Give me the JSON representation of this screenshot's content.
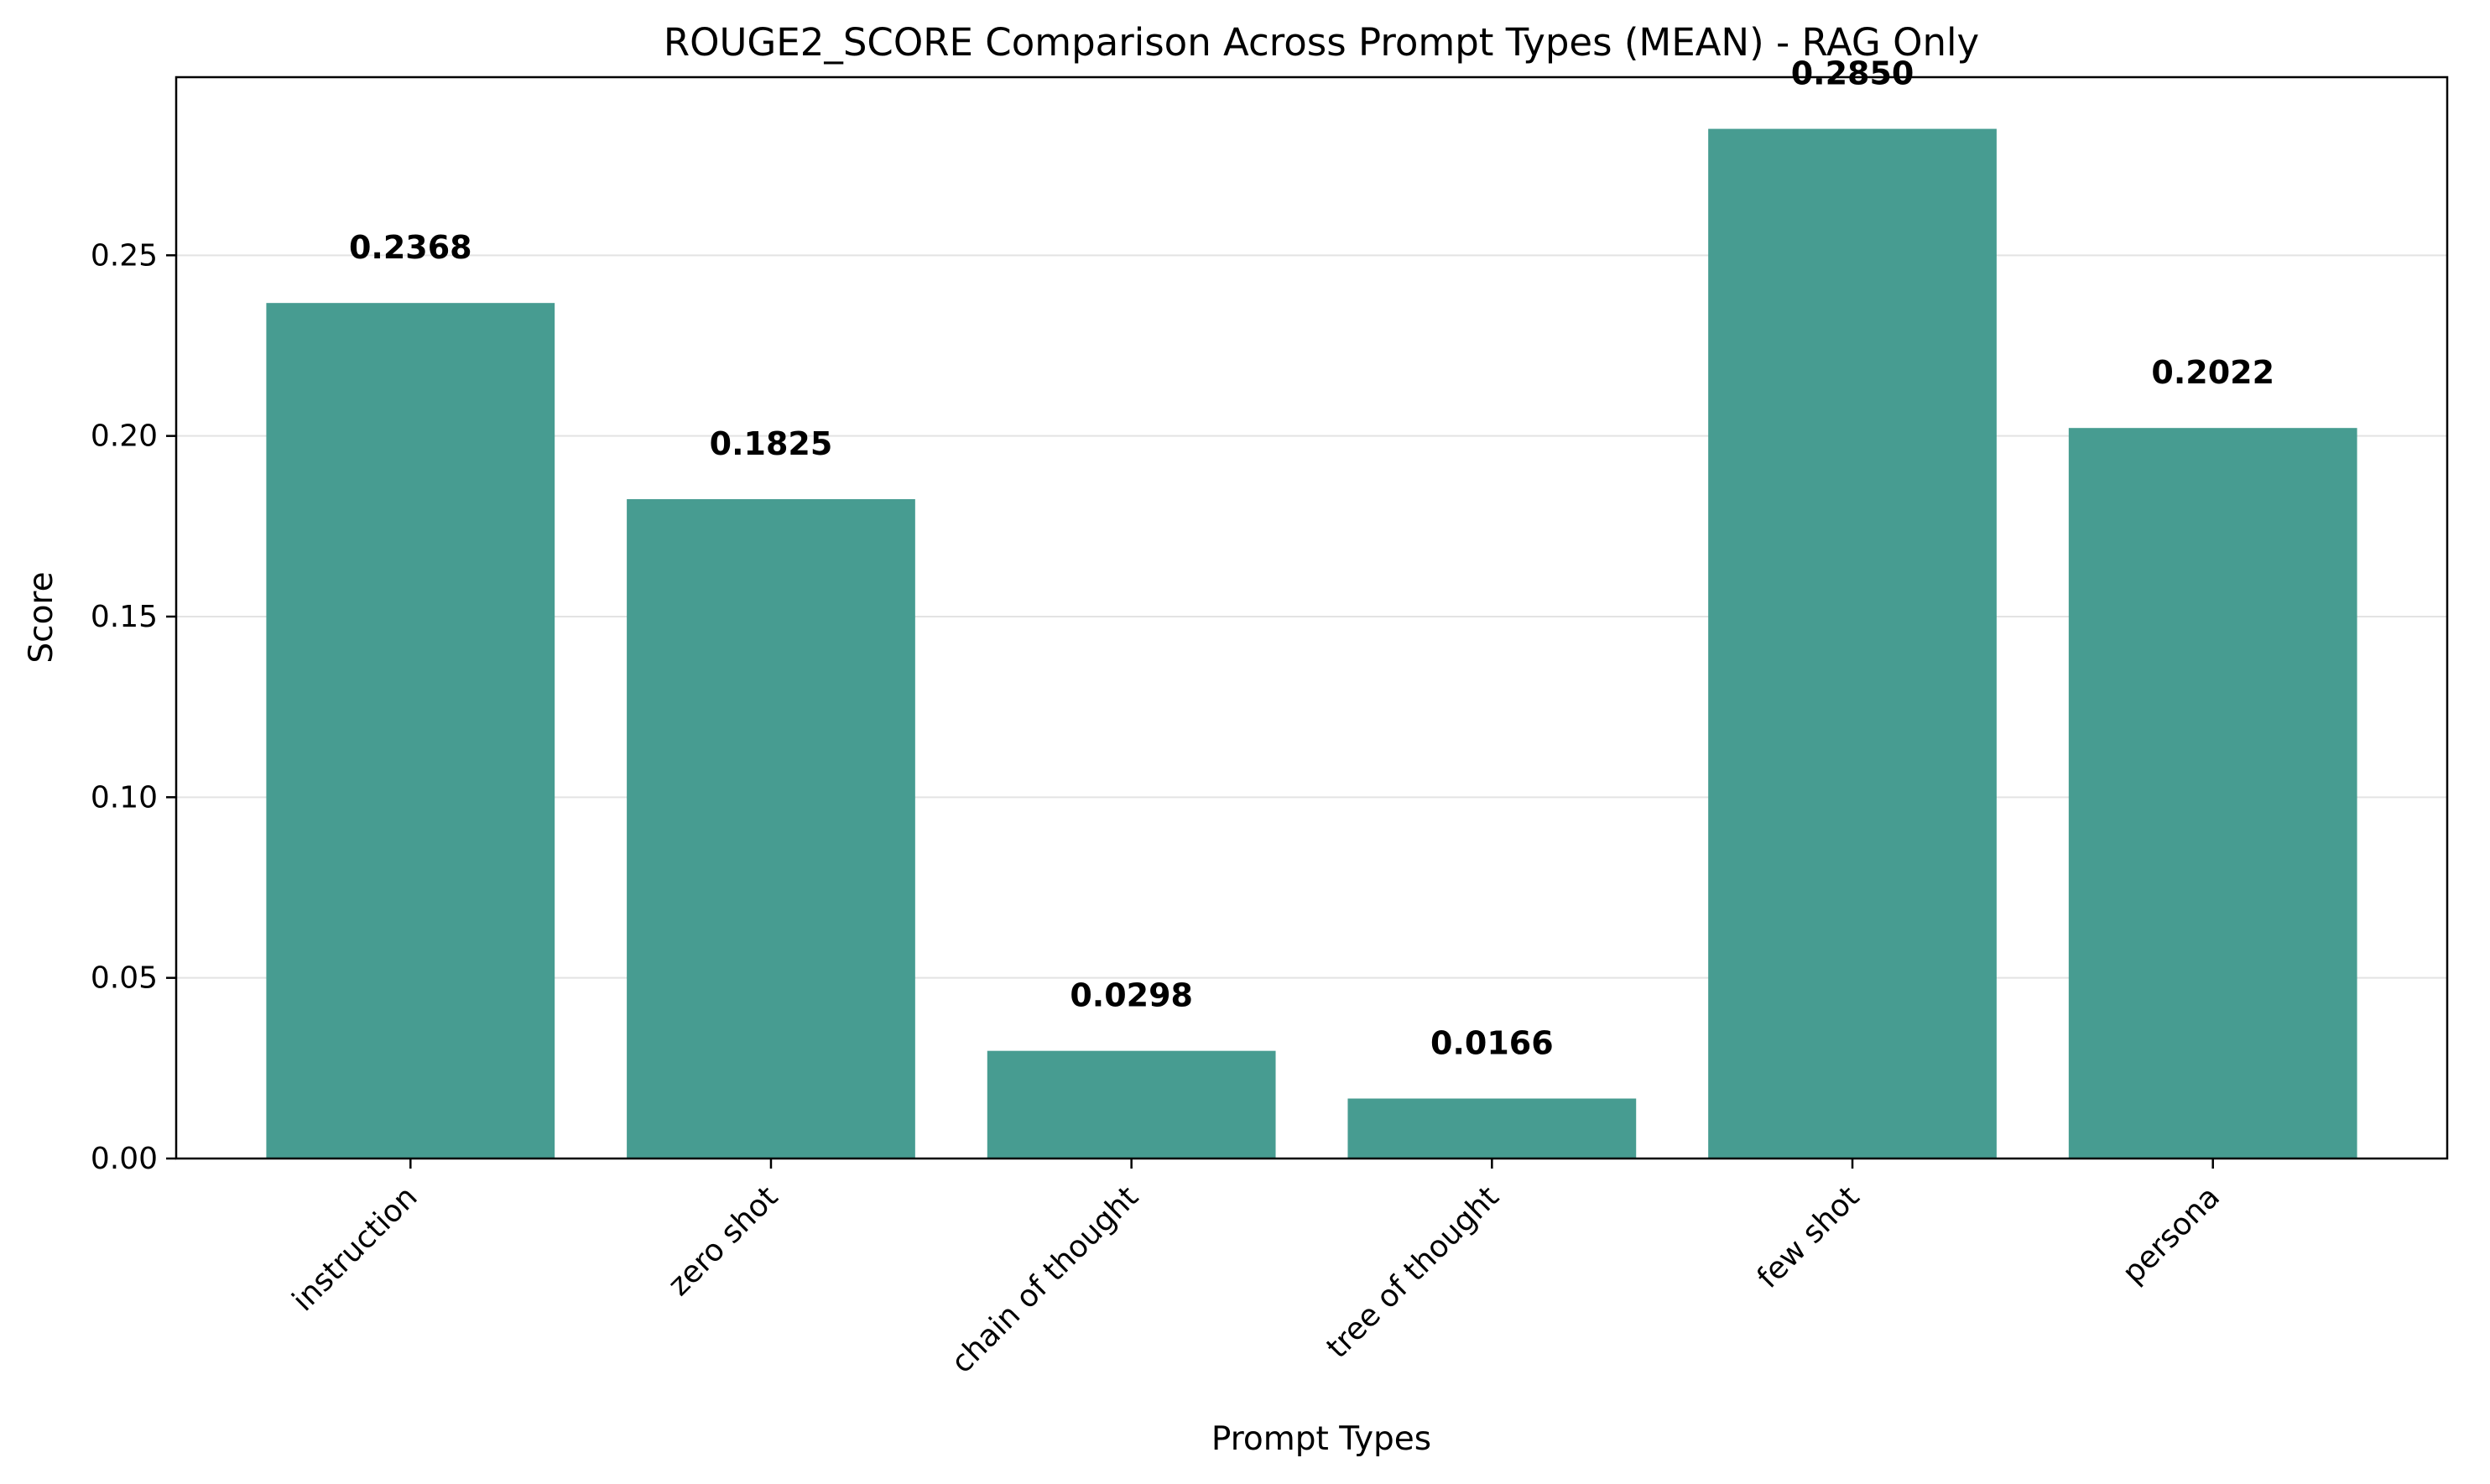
{
  "chart_data": {
    "type": "bar",
    "title": "ROUGE2_SCORE Comparison Across Prompt Types (MEAN) - RAG Only",
    "xlabel": "Prompt Types",
    "ylabel": "Score",
    "categories": [
      "instruction",
      "zero shot",
      "chain of thought",
      "tree of thought",
      "few shot",
      "persona"
    ],
    "values": [
      0.2368,
      0.1825,
      0.0298,
      0.0166,
      0.285,
      0.2022
    ],
    "value_labels": [
      "0.2368",
      "0.1825",
      "0.0298",
      "0.0166",
      "0.2850",
      "0.2022"
    ],
    "yticks": [
      0.0,
      0.05,
      0.1,
      0.15,
      0.2,
      0.25
    ],
    "ytick_labels": [
      "0.00",
      "0.05",
      "0.10",
      "0.15",
      "0.20",
      "0.25"
    ],
    "ylim": [
      0,
      0.2993
    ],
    "grid": "y",
    "bar_color": "#479c91",
    "grid_color": "#e3e3e3"
  }
}
